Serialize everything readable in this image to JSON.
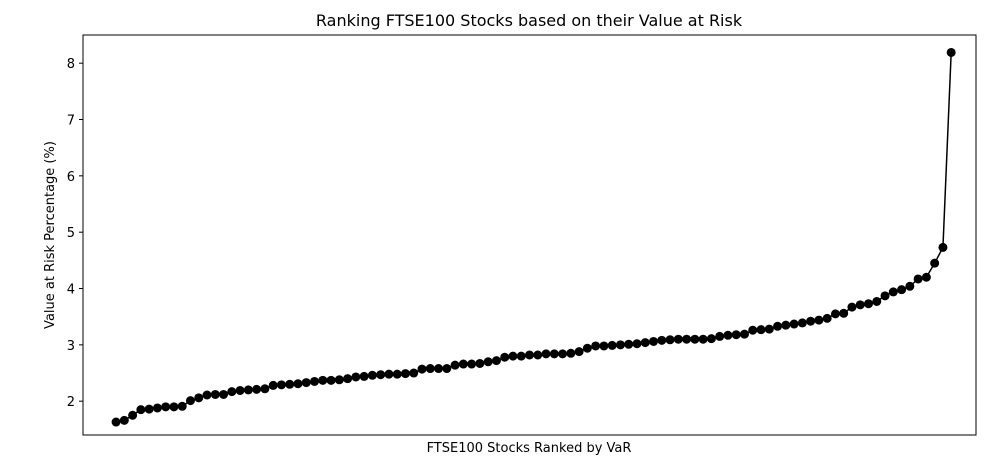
{
  "chart_data": {
    "type": "line",
    "title": "Ranking FTSE100 Stocks based on their Value at Risk",
    "xlabel": "FTSE100 Stocks Ranked by VaR",
    "ylabel": "Value at Risk Percentage (%)",
    "ylim": [
      1.4,
      8.5
    ],
    "xlim": [
      -4,
      104
    ],
    "yticks": [
      2,
      3,
      4,
      5,
      6,
      7,
      8
    ],
    "grid": false,
    "legend": "none",
    "marker": "circle",
    "colors": {
      "line": "#000000",
      "marker": "#000000"
    },
    "series": [
      {
        "values": [
          1.63,
          1.66,
          1.75,
          1.85,
          1.86,
          1.88,
          1.9,
          1.9,
          1.91,
          2.01,
          2.06,
          2.11,
          2.12,
          2.12,
          2.17,
          2.19,
          2.2,
          2.21,
          2.22,
          2.28,
          2.29,
          2.3,
          2.31,
          2.33,
          2.35,
          2.37,
          2.37,
          2.38,
          2.4,
          2.43,
          2.44,
          2.46,
          2.47,
          2.48,
          2.48,
          2.49,
          2.5,
          2.57,
          2.58,
          2.58,
          2.58,
          2.64,
          2.66,
          2.66,
          2.67,
          2.7,
          2.72,
          2.78,
          2.8,
          2.8,
          2.82,
          2.82,
          2.84,
          2.84,
          2.84,
          2.85,
          2.88,
          2.94,
          2.98,
          2.98,
          2.99,
          3.0,
          3.01,
          3.02,
          3.04,
          3.06,
          3.08,
          3.09,
          3.1,
          3.1,
          3.1,
          3.1,
          3.11,
          3.15,
          3.17,
          3.18,
          3.19,
          3.26,
          3.27,
          3.28,
          3.33,
          3.35,
          3.37,
          3.39,
          3.42,
          3.44,
          3.47,
          3.55,
          3.56,
          3.67,
          3.71,
          3.73,
          3.77,
          3.87,
          3.94,
          3.98,
          4.04,
          4.17,
          4.2,
          4.45,
          4.73,
          8.19
        ]
      }
    ]
  }
}
